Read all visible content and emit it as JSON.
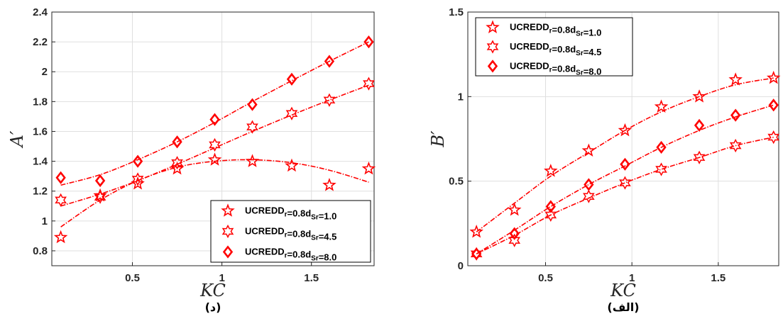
{
  "chart_data": [
    {
      "type": "scatter",
      "panel_caption": "(د)",
      "xlabel": "KC",
      "ylabel": "A′",
      "xlim": [
        0.05,
        1.85
      ],
      "ylim": [
        0.7,
        2.4
      ],
      "xticks": [
        0.5,
        1,
        1.5
      ],
      "xtick_labels": [
        "0.5",
        "1",
        "1.5"
      ],
      "yticks": [
        0.8,
        1,
        1.2,
        1.4,
        1.6,
        1.8,
        2,
        2.2,
        2.4
      ],
      "ytick_labels": [
        "0.8",
        "1",
        "1.2",
        "1.4",
        "1.6",
        "1.8",
        "2",
        "2.2",
        "2.4"
      ],
      "grid": true,
      "legend_position": "bottom-right",
      "x": [
        0.1,
        0.32,
        0.53,
        0.75,
        0.96,
        1.17,
        1.39,
        1.6,
        1.82
      ],
      "series": [
        {
          "legend_label": "UCRED D_r=0.8 d_Sr=1.0",
          "marker": "star",
          "values": [
            0.89,
            1.17,
            1.25,
            1.35,
            1.41,
            1.4,
            1.37,
            1.24,
            1.35
          ],
          "fit": [
            0.96,
            1.14,
            1.27,
            1.36,
            1.4,
            1.41,
            1.39,
            1.34,
            1.26
          ]
        },
        {
          "legend_label": "UCRED D_r=0.8 d_Sr=4.5",
          "marker": "hexagram",
          "values": [
            1.14,
            1.16,
            1.28,
            1.39,
            1.51,
            1.63,
            1.72,
            1.81,
            1.92
          ],
          "fit": [
            1.1,
            1.18,
            1.27,
            1.38,
            1.49,
            1.6,
            1.71,
            1.81,
            1.91
          ]
        },
        {
          "legend_label": "UCRED D_r=0.8 d_Sr=8.0",
          "marker": "diamond",
          "values": [
            1.29,
            1.27,
            1.4,
            1.53,
            1.68,
            1.78,
            1.95,
            2.07,
            2.2
          ],
          "fit": [
            1.24,
            1.31,
            1.41,
            1.53,
            1.66,
            1.8,
            1.94,
            2.07,
            2.2
          ]
        }
      ]
    },
    {
      "type": "scatter",
      "panel_caption": "(الف)",
      "xlabel": "KC",
      "ylabel": "B′",
      "xlim": [
        0.05,
        1.85
      ],
      "ylim": [
        0,
        1.5
      ],
      "xticks": [
        0.5,
        1,
        1.5
      ],
      "xtick_labels": [
        "0.5",
        "1",
        "1.5"
      ],
      "yticks": [
        0,
        0.5,
        1,
        1.5
      ],
      "ytick_labels": [
        "0",
        "0.5",
        "1",
        "1.5"
      ],
      "grid": true,
      "legend_position": "top-left",
      "x": [
        0.1,
        0.32,
        0.53,
        0.75,
        0.96,
        1.17,
        1.39,
        1.6,
        1.82
      ],
      "series": [
        {
          "legend_label": "UCRED D_r=0.8 d_Sr=1.0",
          "marker": "star",
          "values": [
            0.2,
            0.33,
            0.56,
            0.68,
            0.8,
            0.94,
            1.0,
            1.1,
            1.11
          ],
          "fit": [
            0.2,
            0.37,
            0.53,
            0.67,
            0.8,
            0.91,
            1.0,
            1.07,
            1.11
          ]
        },
        {
          "legend_label": "UCRED D_r=0.8 d_Sr=4.5",
          "marker": "hexagram",
          "values": [
            0.07,
            0.15,
            0.3,
            0.41,
            0.49,
            0.57,
            0.64,
            0.71,
            0.76
          ],
          "fit": [
            0.07,
            0.18,
            0.3,
            0.4,
            0.49,
            0.57,
            0.64,
            0.71,
            0.76
          ]
        },
        {
          "legend_label": "UCRED D_r=0.8 d_Sr=8.0",
          "marker": "diamond",
          "values": [
            0.07,
            0.19,
            0.35,
            0.48,
            0.6,
            0.7,
            0.83,
            0.89,
            0.95
          ],
          "fit": [
            0.07,
            0.21,
            0.35,
            0.48,
            0.59,
            0.7,
            0.8,
            0.88,
            0.95
          ]
        }
      ]
    }
  ],
  "legend": {
    "name": "UCRED",
    "d_symbol": "D",
    "d_sub": "r",
    "d_val": "=0.8",
    "s_symbol": "d",
    "s_sub": "Sr",
    "s_vals": [
      "=1.0",
      "=4.5",
      "=8.0"
    ]
  },
  "colors": {
    "series": "#ff0000",
    "grid": "#dfdfdf",
    "axis": "#262626"
  }
}
